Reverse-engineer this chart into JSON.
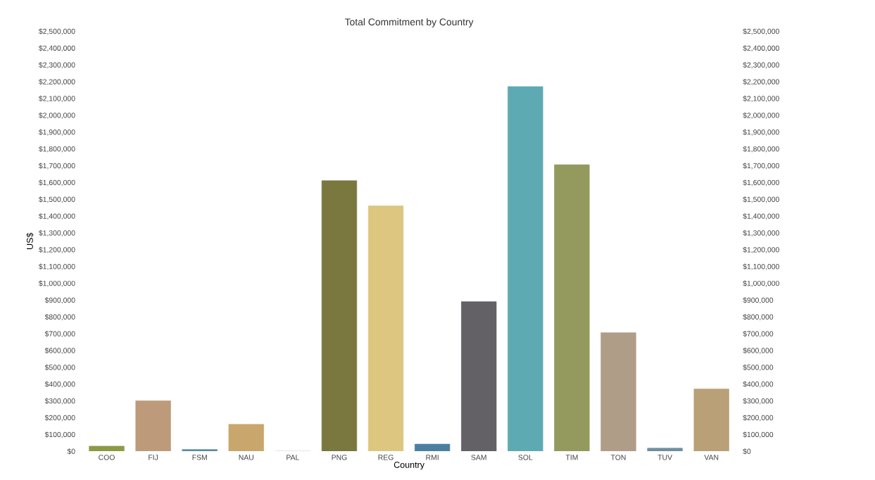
{
  "chart_data": {
    "type": "bar",
    "title": "Total Commitment by Country",
    "xlabel": "Country",
    "ylabel": "US$",
    "categories": [
      "COO",
      "FIJ",
      "FSM",
      "NAU",
      "PAL",
      "PNG",
      "REG",
      "RMI",
      "SAM",
      "SOL",
      "TIM",
      "TON",
      "TUV",
      "VAN"
    ],
    "values": [
      30000,
      300000,
      10000,
      160000,
      0,
      1610000,
      1460000,
      42000,
      890000,
      2170000,
      1705000,
      705000,
      18000,
      370000
    ],
    "colors": [
      "#8b9a45",
      "#bd9b7a",
      "#5a89a8",
      "#c9a66b",
      "#cccccc",
      "#7a773f",
      "#dcc680",
      "#4a7fa0",
      "#636166",
      "#5eaab3",
      "#949a5e",
      "#b09d88",
      "#6f8fa0",
      "#b9a077"
    ],
    "ylim": [
      0,
      2500000
    ],
    "yticks": [
      {
        "value": 0,
        "label": "$0"
      },
      {
        "value": 100000,
        "label": "$100,000"
      },
      {
        "value": 200000,
        "label": "$200,000"
      },
      {
        "value": 300000,
        "label": "$300,000"
      },
      {
        "value": 400000,
        "label": "$400,000"
      },
      {
        "value": 500000,
        "label": "$500,000"
      },
      {
        "value": 600000,
        "label": "$600,000"
      },
      {
        "value": 700000,
        "label": "$700,000"
      },
      {
        "value": 800000,
        "label": "$800,000"
      },
      {
        "value": 900000,
        "label": "$900,000"
      },
      {
        "value": 1000000,
        "label": "$1,000,000"
      },
      {
        "value": 1100000,
        "label": "$1,100,000"
      },
      {
        "value": 1200000,
        "label": "$1,200,000"
      },
      {
        "value": 1300000,
        "label": "$1,300,000"
      },
      {
        "value": 1400000,
        "label": "$1,400,000"
      },
      {
        "value": 1500000,
        "label": "$1,500,000"
      },
      {
        "value": 1600000,
        "label": "$1,600,000"
      },
      {
        "value": 1700000,
        "label": "$1,700,000"
      },
      {
        "value": 1800000,
        "label": "$1,800,000"
      },
      {
        "value": 1900000,
        "label": "$1,900,000"
      },
      {
        "value": 2000000,
        "label": "$2,000,000"
      },
      {
        "value": 2100000,
        "label": "$2,100,000"
      },
      {
        "value": 2200000,
        "label": "$2,200,000"
      },
      {
        "value": 2300000,
        "label": "$2,300,000"
      },
      {
        "value": 2400000,
        "label": "$2,400,000"
      },
      {
        "value": 2500000,
        "label": "$2,500,000"
      }
    ],
    "y2lim": [
      0,
      2500000
    ],
    "y2ticks": [
      {
        "value": 0,
        "label": "$0"
      },
      {
        "value": 100000,
        "label": "$100,000"
      },
      {
        "value": 200000,
        "label": "$200,000"
      },
      {
        "value": 300000,
        "label": "$300,000"
      },
      {
        "value": 400000,
        "label": "$400,000"
      },
      {
        "value": 500000,
        "label": "$500,000"
      },
      {
        "value": 600000,
        "label": "$600,000"
      },
      {
        "value": 700000,
        "label": "$700,000"
      },
      {
        "value": 800000,
        "label": "$800,000"
      },
      {
        "value": 900000,
        "label": "$900,000"
      },
      {
        "value": 1000000,
        "label": "$1,000,000"
      },
      {
        "value": 1100000,
        "label": "$1,100,000"
      },
      {
        "value": 1200000,
        "label": "$1,200,000"
      },
      {
        "value": 1300000,
        "label": "$1,300,000"
      },
      {
        "value": 1400000,
        "label": "$1,400,000"
      },
      {
        "value": 1500000,
        "label": "$1,500,000"
      },
      {
        "value": 1600000,
        "label": "$1,600,000"
      },
      {
        "value": 1700000,
        "label": "$1,700,000"
      },
      {
        "value": 1800000,
        "label": "$1,800,000"
      },
      {
        "value": 1900000,
        "label": "$1,900,000"
      },
      {
        "value": 2000000,
        "label": "$2,000,000"
      },
      {
        "value": 2100000,
        "label": "$2,100,000"
      },
      {
        "value": 2200000,
        "label": "$2,200,000"
      },
      {
        "value": 2300000,
        "label": "$2,300,000"
      },
      {
        "value": 2400000,
        "label": "$2,400,000"
      },
      {
        "value": 2500000,
        "label": "$2,500,000"
      }
    ]
  }
}
